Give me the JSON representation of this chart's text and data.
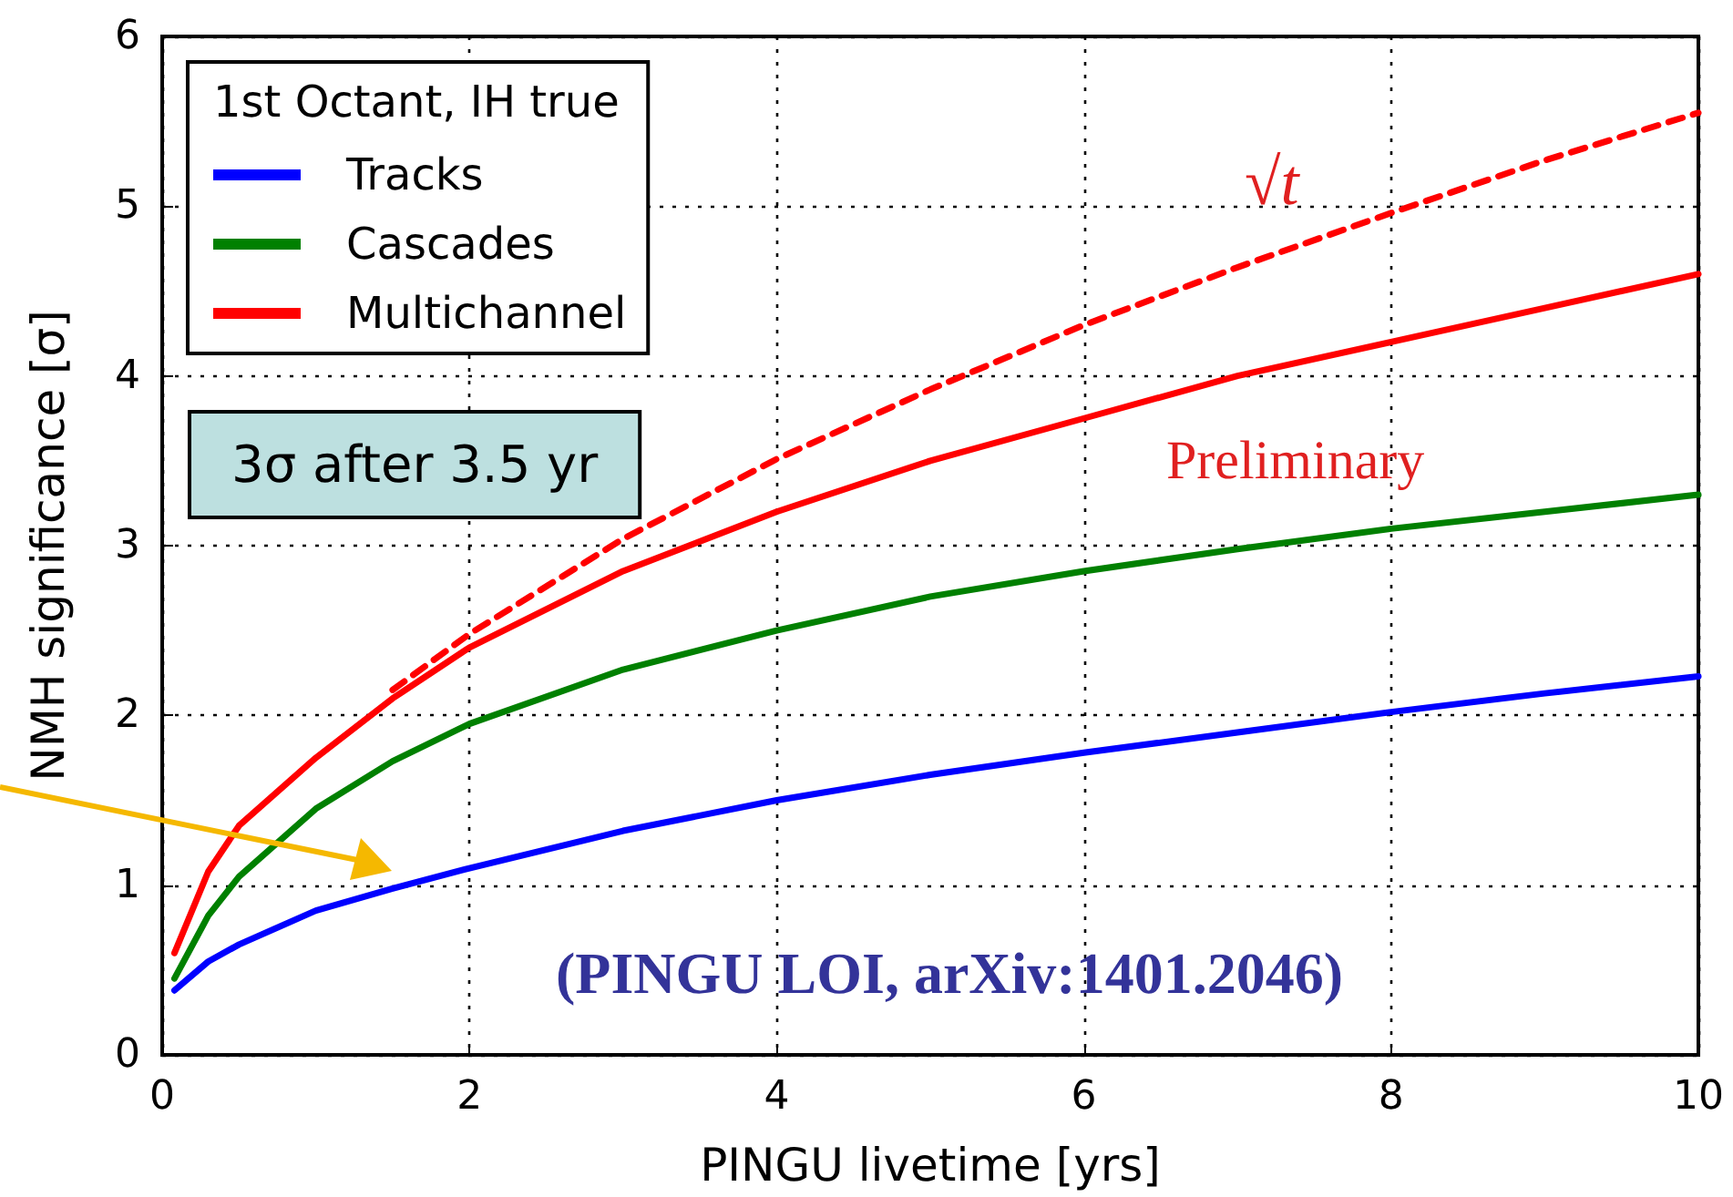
{
  "chart_data": {
    "type": "line",
    "xlabel": "PINGU livetime [yrs]",
    "ylabel": "NMH significance [σ]",
    "legend_title": "1st Octant, IH true",
    "xlim": [
      0,
      10
    ],
    "ylim": [
      0,
      6
    ],
    "xticks": [
      0,
      2,
      4,
      6,
      8,
      10
    ],
    "yticks": [
      0,
      1,
      2,
      3,
      4,
      5,
      6
    ],
    "grid": true,
    "legend": "top left",
    "marker": "none",
    "line_style": "solid",
    "series": [
      {
        "name": "Tracks",
        "color": "#0000ff",
        "x": [
          0.08,
          0.3,
          0.5,
          1,
          1.5,
          2,
          3,
          4,
          5,
          6,
          7,
          8,
          9,
          10
        ],
        "values": [
          0.38,
          0.55,
          0.65,
          0.85,
          0.98,
          1.1,
          1.32,
          1.5,
          1.65,
          1.78,
          1.9,
          2.02,
          2.13,
          2.23
        ]
      },
      {
        "name": "Cascades",
        "color": "#008000",
        "x": [
          0.08,
          0.3,
          0.5,
          1,
          1.5,
          2,
          3,
          4,
          5,
          6,
          7,
          8,
          9,
          10
        ],
        "values": [
          0.45,
          0.82,
          1.05,
          1.45,
          1.73,
          1.95,
          2.27,
          2.5,
          2.7,
          2.85,
          2.98,
          3.1,
          3.2,
          3.3
        ]
      },
      {
        "name": "Multichannel",
        "color": "#ff0000",
        "x": [
          0.08,
          0.3,
          0.5,
          1,
          1.5,
          2,
          3,
          4,
          5,
          6,
          7,
          8,
          9,
          10
        ],
        "values": [
          0.6,
          1.08,
          1.35,
          1.75,
          2.1,
          2.4,
          2.85,
          3.2,
          3.5,
          3.75,
          4,
          4.2,
          4.4,
          4.6
        ]
      },
      {
        "color": "#ff0000",
        "line_style": "dashed",
        "x": [
          1.5,
          2,
          3,
          4,
          5,
          6,
          7,
          8,
          9,
          10
        ],
        "values": [
          2.15,
          2.48,
          3.04,
          3.51,
          3.92,
          4.3,
          4.64,
          4.96,
          5.27,
          5.55
        ]
      }
    ],
    "annotations": [
      "3σ after 3.5 yr",
      "Preliminary",
      "(PINGU LOI, arXiv:1401.2046)",
      "√t"
    ]
  }
}
